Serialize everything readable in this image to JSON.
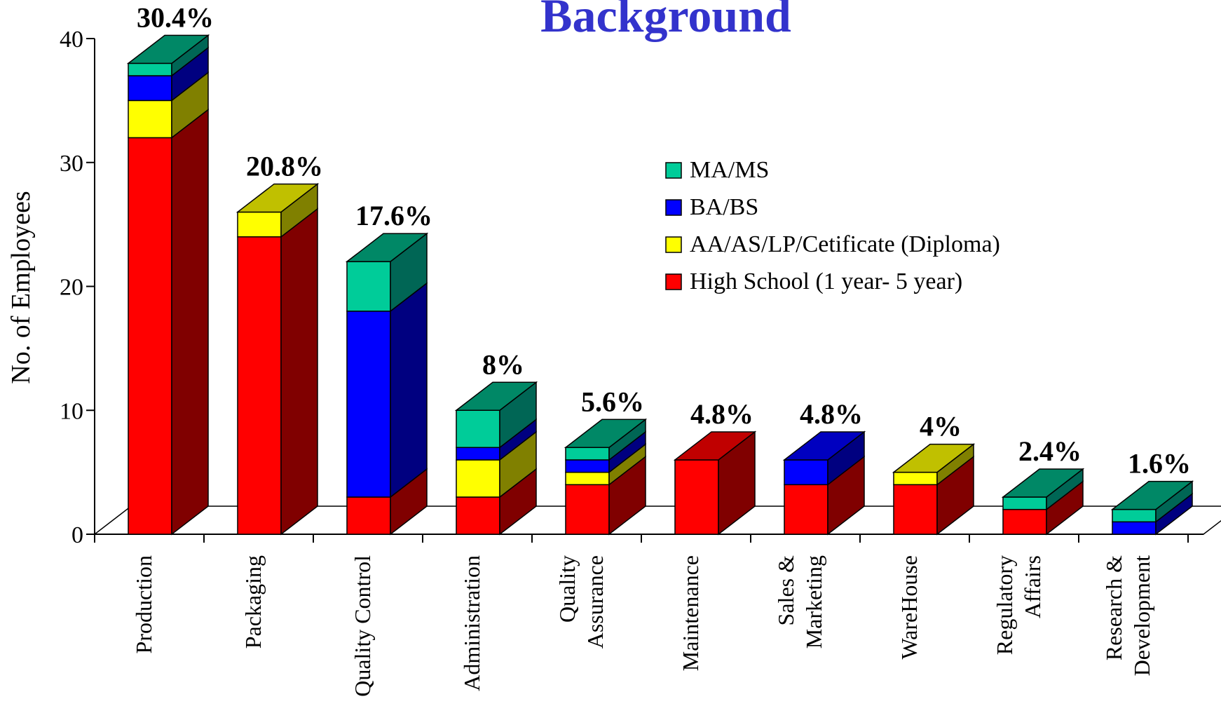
{
  "chart_data": {
    "type": "bar",
    "stacked": true,
    "three_d": true,
    "title": "Background",
    "ylabel": "No. of Employees",
    "xlabel": "",
    "ylim": [
      0,
      40
    ],
    "yticks": [
      0,
      10,
      20,
      30,
      40
    ],
    "categories": [
      [
        "Production"
      ],
      [
        "Packaging"
      ],
      [
        "Quality Control"
      ],
      [
        "Administration"
      ],
      [
        "Quality",
        "Assurance"
      ],
      [
        "Maintenance"
      ],
      [
        "Sales &",
        "Marketing"
      ],
      [
        "WareHouse"
      ],
      [
        "Regulatory",
        "Affairs"
      ],
      [
        "Research &",
        "Development"
      ]
    ],
    "series": [
      {
        "name": "High School (1 year- 5 year)",
        "color": "#ff0000",
        "side_color": "#800000",
        "top_color": "#c00000",
        "values": [
          32,
          24,
          3,
          3,
          4,
          6,
          4,
          4,
          2,
          0
        ]
      },
      {
        "name": "AA/AS/LP/Cetificate (Diploma)",
        "color": "#ffff00",
        "side_color": "#808000",
        "top_color": "#c0c000",
        "values": [
          3,
          2,
          0,
          3,
          1,
          0,
          0,
          1,
          0,
          0
        ]
      },
      {
        "name": "BA/BS",
        "color": "#0000ff",
        "side_color": "#000080",
        "top_color": "#0000c0",
        "values": [
          2,
          0,
          15,
          1,
          1,
          0,
          2,
          0,
          0,
          1
        ]
      },
      {
        "name": "MA/MS",
        "color": "#00cc99",
        "side_color": "#006655",
        "top_color": "#008866",
        "values": [
          1,
          0,
          4,
          3,
          1,
          0,
          0,
          0,
          1,
          1
        ]
      }
    ],
    "percent_labels": [
      "30.4%",
      "20.8%",
      "17.6%",
      "8%",
      "5.6%",
      "4.8%",
      "4.8%",
      "4%",
      "2.4%",
      "1.6%"
    ],
    "legend": {
      "position": "right-center",
      "order": [
        "MA/MS",
        "BA/BS",
        "AA/AS/LP/Cetificate (Diploma)",
        "High School (1 year- 5 year)"
      ]
    },
    "grid": false
  }
}
